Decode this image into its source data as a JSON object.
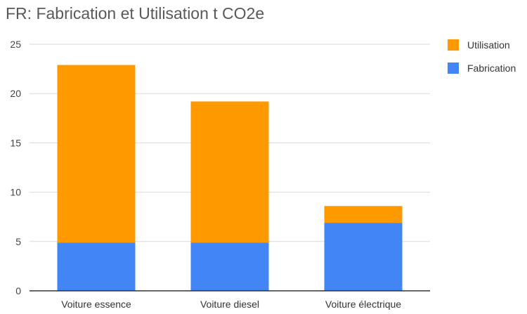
{
  "chart_data": {
    "type": "bar",
    "stacked": true,
    "title": "FR: Fabrication et Utilisation t CO2e",
    "xlabel": "",
    "ylabel": "",
    "categories": [
      "Voiture essence",
      "Voiture diesel",
      "Voiture électrique"
    ],
    "series": [
      {
        "name": "Fabrication",
        "color": "#4285F4",
        "values": [
          4.9,
          4.9,
          6.9
        ]
      },
      {
        "name": "Utilisation",
        "color": "#FF9900",
        "values": [
          18.0,
          14.3,
          1.7
        ]
      }
    ],
    "ylim": [
      0,
      25
    ],
    "yticks": [
      0,
      5,
      10,
      15,
      20,
      25
    ],
    "grid": true,
    "legend_position": "right",
    "legend_order": [
      "Utilisation",
      "Fabrication"
    ]
  }
}
